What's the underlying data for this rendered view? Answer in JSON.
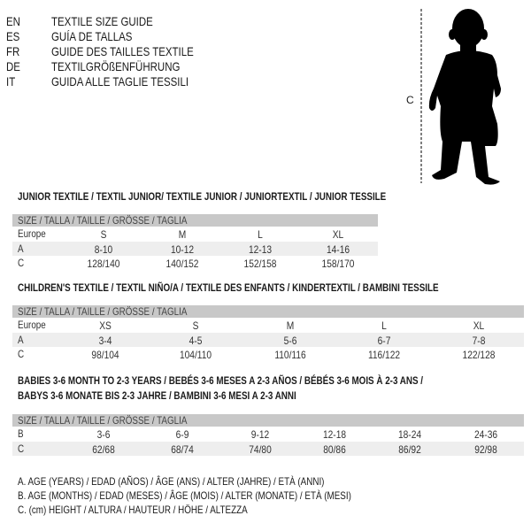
{
  "header": {
    "languages": [
      {
        "code": "EN",
        "title": "TEXTILE SIZE GUIDE"
      },
      {
        "code": "ES",
        "title": "GUÍA DE TALLAS"
      },
      {
        "code": "FR",
        "title": "GUIDE DES TAILLES TEXTILE"
      },
      {
        "code": "DE",
        "title": "TEXTILGRÖßENFÜHRUNG"
      },
      {
        "code": "IT",
        "title": "GUIDA ALLE TAGLIE TESSILI"
      }
    ]
  },
  "figure": {
    "measure_label": "C",
    "icon": "baby-silhouette"
  },
  "colors": {
    "header_row": "#c8c8c8",
    "alt_row": "#eeeeee"
  },
  "sections": [
    {
      "title": [
        "JUNIOR TEXTILE / TEXTIL JUNIOR/ TEXTILE JUNIOR / JUNIORTEXTIL / JUNIOR TESSILE"
      ],
      "table": {
        "header": "SIZE / TALLA / TAILLE / GRÖSSE / TAGLIA",
        "rows": [
          {
            "label": "Europe",
            "values": [
              "S",
              "M",
              "L",
              "XL"
            ]
          },
          {
            "label": "A",
            "values": [
              "8-10",
              "10-12",
              "12-13",
              "14-16"
            ]
          },
          {
            "label": "C",
            "values": [
              "128/140",
              "140/152",
              "152/158",
              "158/170"
            ]
          }
        ]
      }
    },
    {
      "title": [
        "CHILDREN'S TEXTILE / TEXTIL NIÑO/A / TEXTILE DES ENFANTS / KINDERTEXTIL / BAMBINI TESSILE"
      ],
      "table": {
        "header": "SIZE / TALLA / TAILLE / GRÖSSE / TAGLIA",
        "rows": [
          {
            "label": "Europe",
            "values": [
              "XS",
              "S",
              "M",
              "L",
              "XL"
            ]
          },
          {
            "label": "A",
            "values": [
              "3-4",
              "4-5",
              "5-6",
              "6-7",
              "7-8"
            ]
          },
          {
            "label": "C",
            "values": [
              "98/104",
              "104/110",
              "110/116",
              "116/122",
              "122/128"
            ]
          }
        ]
      }
    },
    {
      "title": [
        "BABIES 3-6 MONTH TO 2-3 YEARS / BEBÉS 3-6 MESES A 2-3 AÑOS / BÉBÉS 3-6 MOIS À 2-3 ANS /",
        "BABYS 3-6 MONATE BIS 2-3 JAHRE / BAMBINI 3-6 MESI A 2-3 ANNI"
      ],
      "table": {
        "header": "SIZE / TALLA / TAILLE / GRÖSSE / TAGLIA",
        "rows": [
          {
            "label": "B",
            "values": [
              "3-6",
              "6-9",
              "9-12",
              "12-18",
              "18-24",
              "24-36"
            ]
          },
          {
            "label": "C",
            "values": [
              "62/68",
              "68/74",
              "74/80",
              "80/86",
              "86/92",
              "92/98"
            ]
          }
        ]
      }
    }
  ],
  "legend": [
    "A. AGE (YEARS) / EDAD (AÑOS) / ÂGE (ANS) / ALTER (JAHRE) / ETÀ (ANNI)",
    "B. AGE (MONTHS) / EDAD (MESES) / ÂGE (MOIS) / ALTER (MONATE) / ETÀ (MESI)",
    "C. (cm) HEIGHT / ALTURA / HAUTEUR / HÖHE / ALTEZZA"
  ]
}
